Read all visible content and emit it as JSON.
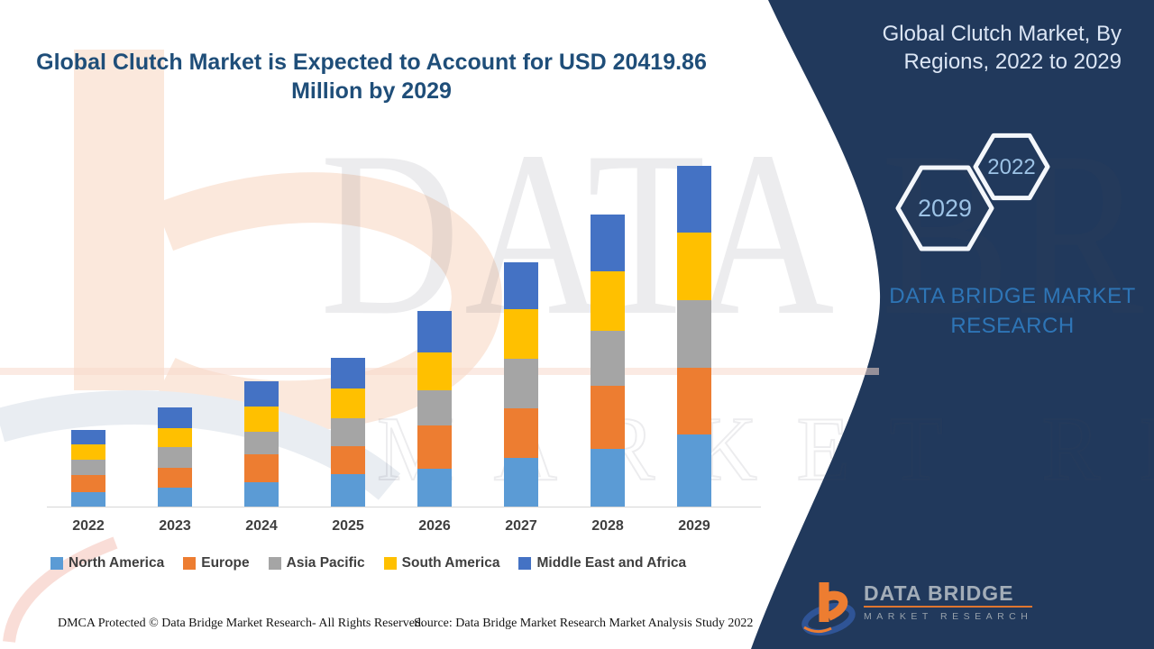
{
  "page": {
    "title_line1": "Global Clutch Market is Expected to Account for USD 20419.86",
    "title_line2": "Million by 2029",
    "footer": {
      "dmca": "DMCA Protected © Data Bridge Market Research- All Rights Reserved.",
      "source": "Source: Data Bridge Market Research Market Analysis Study 2022"
    }
  },
  "side_panel": {
    "bg_color": "#21395c",
    "heading_line1": "Global Clutch Market, By",
    "heading_line2": "Regions, 2022 to 2029",
    "hexagons": [
      {
        "label": "2029"
      },
      {
        "label": "2022"
      }
    ],
    "brand_line1": "DATA BRIDGE MARKET",
    "brand_line2": "RESEARCH",
    "logo": {
      "name": "DATA BRIDGE",
      "tagline": "MARKET RESEARCH"
    }
  },
  "watermark": {
    "line1": "DATA BRIDGE",
    "line2": "MARKET RESEARCH"
  },
  "chart_data": {
    "type": "bar",
    "stacked": true,
    "title": "Global Clutch Market, By Regions, 2022 to 2029",
    "categories": [
      "2022",
      "2023",
      "2024",
      "2025",
      "2026",
      "2027",
      "2028",
      "2029"
    ],
    "series": [
      {
        "name": "North America",
        "color": "#5B9BD5",
        "values": [
          16,
          21,
          27,
          36,
          42,
          54,
          64,
          80
        ]
      },
      {
        "name": "Europe",
        "color": "#ED7D31",
        "values": [
          19,
          22,
          31,
          31,
          48,
          55,
          70,
          74
        ]
      },
      {
        "name": "Asia Pacific",
        "color": "#A5A5A5",
        "values": [
          17,
          23,
          25,
          31,
          39,
          55,
          61,
          75
        ]
      },
      {
        "name": "South America",
        "color": "#FFC000",
        "values": [
          17,
          21,
          28,
          33,
          42,
          55,
          66,
          75
        ]
      },
      {
        "name": "Middle East and Africa",
        "color": "#4472C4",
        "values": [
          16,
          23,
          28,
          34,
          46,
          52,
          63,
          74
        ]
      }
    ],
    "value_unit": "relative stacked-segment height in screen px (chart displays no y-axis or value labels)",
    "anchor_note": "Headline states total market reaches USD 20419.86 million by 2029 (2029 stack total = 378 relative units)",
    "xlabel": "",
    "ylabel": "",
    "grid": false,
    "legend_position": "bottom"
  }
}
